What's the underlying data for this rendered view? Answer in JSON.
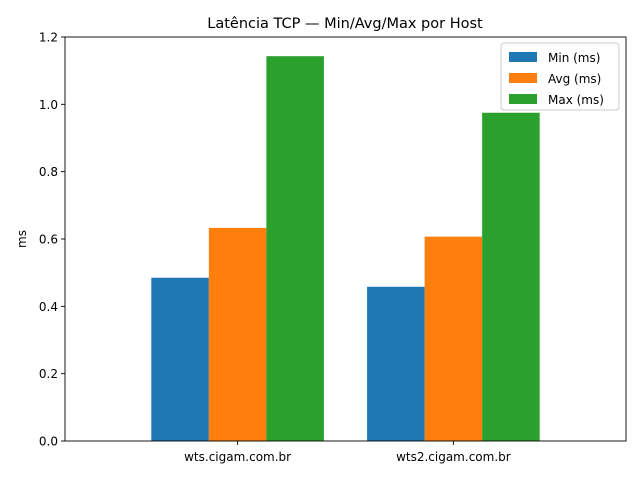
{
  "chart_data": {
    "type": "bar",
    "title": "Latência TCP — Min/Avg/Max por Host",
    "xlabel": "",
    "ylabel": "ms",
    "ylim": [
      0,
      1.2
    ],
    "yticks": [
      0.0,
      0.2,
      0.4,
      0.6,
      0.8,
      1.0,
      1.2
    ],
    "ytick_labels": [
      "0.0",
      "0.2",
      "0.4",
      "0.6",
      "0.8",
      "1.0",
      "1.2"
    ],
    "categories": [
      "wts.cigam.com.br",
      "wts2.cigam.com.br"
    ],
    "series": [
      {
        "name": "Min (ms)",
        "color": "#1f77b4",
        "values": [
          0.485,
          0.458
        ]
      },
      {
        "name": "Avg (ms)",
        "color": "#ff7f0e",
        "values": [
          0.633,
          0.607
        ]
      },
      {
        "name": "Max (ms)",
        "color": "#2ca02c",
        "values": [
          1.143,
          0.975
        ]
      }
    ],
    "legend": "top-right",
    "grid": false
  }
}
